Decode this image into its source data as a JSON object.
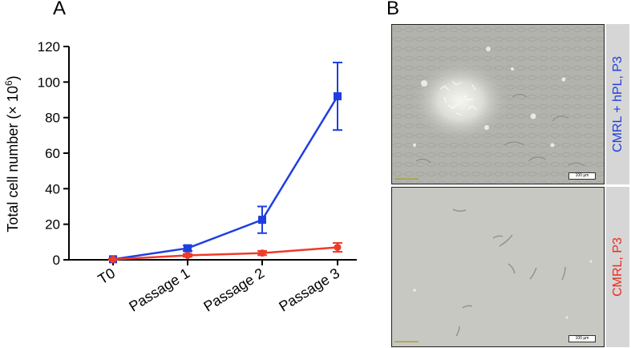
{
  "panel_a_label": "A",
  "panel_b_label": "B",
  "chart_data": {
    "type": "line",
    "categories": [
      "T0",
      "Passage 1",
      "Passage 2",
      "Passage 3"
    ],
    "ylabel_main": "Total cell number (× 10",
    "ylabel_sup": "6",
    "ylabel_end": ")",
    "ylim": [
      0,
      120
    ],
    "yticks": [
      0,
      20,
      40,
      60,
      80,
      100,
      120
    ],
    "series": [
      {
        "color": "#1f3ee0",
        "marker": "square",
        "values": [
          0.3,
          6.5,
          22.5,
          92
        ],
        "err": [
          0.3,
          1.5,
          7.5,
          19
        ]
      },
      {
        "color": "#ee3b2a",
        "marker": "circle",
        "values": [
          0.2,
          2.5,
          3.8,
          7
        ],
        "err": [
          0.2,
          0.8,
          1.2,
          2.5
        ]
      }
    ]
  },
  "micrographs": [
    {
      "label": "CMRL + hPL, P3",
      "label_color": "#1f3ee0",
      "scale_text": "100 µm"
    },
    {
      "label": "CMRL, P3",
      "label_color": "#ee2a1e",
      "scale_text": "100 µm"
    }
  ]
}
